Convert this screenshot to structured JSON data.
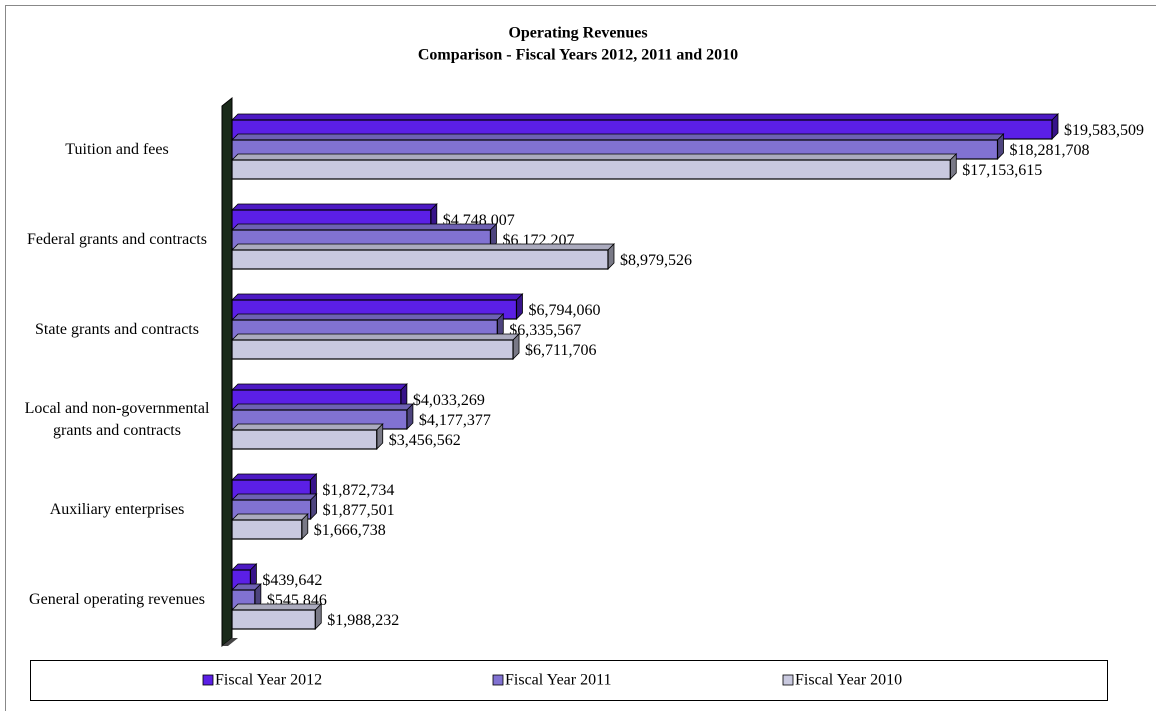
{
  "chart_data": {
    "type": "bar",
    "orientation": "horizontal",
    "title": "Operating Revenues",
    "subtitle": "Comparison - Fiscal Years 2012, 2011 and 2010",
    "categories": [
      "Tuition and fees",
      "Federal grants and contracts",
      "State grants and contracts",
      "Local and non-governmental grants and contracts",
      "Auxiliary enterprises",
      "General operating revenues"
    ],
    "series": [
      {
        "name": "Fiscal Year 2012",
        "color": "#5b1fe6",
        "values": [
          19583509,
          4748007,
          6794060,
          4033269,
          1872734,
          439642
        ],
        "value_labels": [
          "$19,583,509",
          "$4,748,007",
          "$6,794,060",
          "$4,033,269",
          "$1,872,734",
          "$439,642"
        ]
      },
      {
        "name": "Fiscal Year 2011",
        "color": "#8172d2",
        "values": [
          18281708,
          6172207,
          6335567,
          4177377,
          1877501,
          545846
        ],
        "value_labels": [
          "$18,281,708",
          "$6,172,207",
          "$6,335,567",
          "$4,177,377",
          "$1,877,501",
          "$545,846"
        ]
      },
      {
        "name": "Fiscal Year 2010",
        "color": "#c9c9df",
        "values": [
          17153615,
          8979526,
          6711706,
          3456562,
          1666738,
          1988232
        ],
        "value_labels": [
          "$17,153,615",
          "$8,979,526",
          "$6,711,706",
          "$3,456,562",
          "$1,666,738",
          "$1,988,232"
        ]
      }
    ],
    "legend": "bottom"
  }
}
